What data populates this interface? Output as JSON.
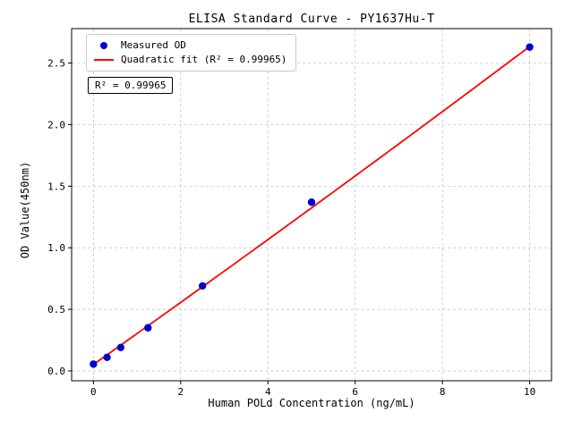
{
  "chart_data": {
    "type": "scatter",
    "title": "ELISA Standard Curve - PY1637Hu-T",
    "xlabel": "Human POLd Concentration (ng/mL)",
    "ylabel": "OD Value(450nm)",
    "xlim": [
      -0.5,
      10.5
    ],
    "ylim": [
      -0.08,
      2.78
    ],
    "xticks": [
      0,
      2,
      4,
      6,
      8,
      10
    ],
    "xtick_labels": [
      "0",
      "2",
      "4",
      "6",
      "8",
      "10"
    ],
    "yticks": [
      0.0,
      0.5,
      1.0,
      1.5,
      2.0,
      2.5
    ],
    "ytick_labels": [
      "0.0",
      "0.5",
      "1.0",
      "1.5",
      "2.0",
      "2.5"
    ],
    "grid": true,
    "legend_position": "upper-left",
    "series": [
      {
        "name": "Measured OD",
        "kind": "scatter",
        "color": "#0000CD",
        "x": [
          0,
          0.3125,
          0.625,
          1.25,
          2.5,
          5,
          10
        ],
        "y": [
          0.055,
          0.11,
          0.19,
          0.35,
          0.69,
          1.37,
          2.63
        ]
      },
      {
        "name": "Quadratic fit (R² = 0.99965)",
        "kind": "quadratic-fit",
        "color": "#FF0000",
        "coefficients": {
          "a": 0.052,
          "b": 0.2505,
          "c": 0.00078
        },
        "x_range": [
          0,
          10
        ],
        "r_squared": 0.99965
      }
    ],
    "annotation": "R² = 0.99965",
    "style": {
      "grid_color": "#bdbdbd",
      "frame_color": "#000000",
      "background": "#ffffff"
    }
  }
}
